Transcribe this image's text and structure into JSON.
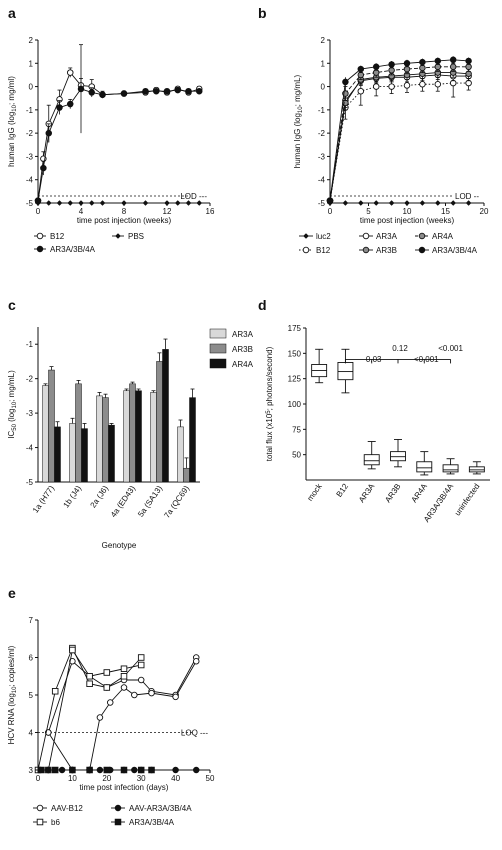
{
  "chart_data": [
    {
      "panel": "a",
      "type": "line",
      "xlabel": "time post injection (weeks)",
      "ylabel": "human IgG (log10; mg/ml)",
      "xlim": [
        0,
        16
      ],
      "ylim": [
        -5,
        2
      ],
      "xticks": [
        0,
        4,
        8,
        12,
        16
      ],
      "yticks": [
        -5,
        -4,
        -3,
        -2,
        -1,
        0,
        1,
        2
      ],
      "reference_line": {
        "label": "LOD",
        "y": -4.7
      },
      "series": [
        {
          "name": "B12",
          "marker": "open-circle",
          "x": [
            0,
            0.5,
            1,
            2,
            3,
            4,
            5,
            6,
            8,
            10,
            11,
            12,
            13,
            14,
            15
          ],
          "y": [
            -4.9,
            -3.1,
            -1.6,
            -0.55,
            0.6,
            0.05,
            0.0,
            -0.35,
            -0.3,
            -0.25,
            -0.15,
            -0.25,
            -0.1,
            -0.25,
            -0.1
          ],
          "err": [
            0,
            0.3,
            0.8,
            0.4,
            0.2,
            0.3,
            0.3,
            0.1,
            0.1,
            0.1,
            0.1,
            0.1,
            0.1,
            0.1,
            0.1
          ]
        },
        {
          "name": "PBS",
          "marker": "filled-diamond",
          "x": [
            0,
            1,
            2,
            3,
            4,
            5,
            6,
            8,
            10,
            12,
            13,
            14,
            15
          ],
          "y": [
            -5,
            -5,
            -5,
            -5,
            -5,
            -5,
            -5,
            -5,
            -5,
            -5,
            -5,
            -5,
            -5
          ],
          "err": [
            0,
            0,
            0,
            0,
            0,
            0,
            0,
            0,
            0,
            0,
            0,
            0,
            0
          ]
        },
        {
          "name": "AR3A/3B/4A",
          "marker": "filled-circle",
          "x": [
            0,
            0.5,
            1,
            2,
            3,
            4,
            5,
            6,
            8,
            10,
            11,
            12,
            13,
            14,
            15
          ],
          "y": [
            -4.9,
            -3.5,
            -2.0,
            -0.9,
            -0.75,
            -0.1,
            -0.25,
            -0.35,
            -0.3,
            -0.2,
            -0.2,
            -0.2,
            -0.15,
            -0.2,
            -0.2
          ],
          "err": [
            0,
            0.3,
            0.4,
            0.3,
            0.2,
            1.9,
            0.2,
            0.15,
            0.1,
            0.1,
            0.1,
            0.1,
            0.1,
            0.1,
            0.1
          ]
        }
      ]
    },
    {
      "panel": "b",
      "type": "line",
      "xlabel": "time post injection (weeks)",
      "ylabel": "human IgG (log10; mg/mL)",
      "xlim": [
        0,
        20
      ],
      "ylim": [
        -5,
        2
      ],
      "xticks": [
        0,
        5,
        10,
        15,
        20
      ],
      "yticks": [
        -5,
        -4,
        -3,
        -2,
        -1,
        0,
        1,
        2
      ],
      "reference_line": {
        "label": "LOD",
        "y": -4.7
      },
      "series": [
        {
          "name": "luc2",
          "marker": "filled-diamond",
          "style": "solid",
          "x": [
            0,
            2,
            4,
            6,
            8,
            10,
            12,
            14,
            16,
            18
          ],
          "y": [
            -5,
            -5,
            -5,
            -5,
            -5,
            -5,
            -5,
            -5,
            -5,
            -5
          ]
        },
        {
          "name": "B12",
          "marker": "open-circle",
          "style": "dotted",
          "x": [
            0,
            2,
            4,
            6,
            8,
            10,
            12,
            14,
            16,
            18
          ],
          "y": [
            -4.9,
            -0.9,
            -0.2,
            0.0,
            0.0,
            0.05,
            0.1,
            0.1,
            0.15,
            0.15
          ],
          "err": [
            0,
            0.5,
            0.6,
            0.4,
            0.3,
            0.3,
            0.3,
            0.3,
            0.6,
            0.3
          ]
        },
        {
          "name": "AR3A",
          "marker": "open-circle",
          "style": "solid",
          "x": [
            0,
            2,
            4,
            6,
            8,
            10,
            12,
            14,
            16,
            18
          ],
          "y": [
            -4.9,
            -0.6,
            0.25,
            0.35,
            0.4,
            0.4,
            0.45,
            0.5,
            0.45,
            0.45
          ],
          "err": [
            0,
            0.3,
            0.2,
            0.2,
            0.2,
            0.2,
            0.2,
            0.2,
            0.2,
            0.2
          ]
        },
        {
          "name": "AR3B",
          "marker": "grey-circle",
          "style": "solid",
          "x": [
            0,
            2,
            4,
            6,
            8,
            10,
            12,
            14,
            16,
            18
          ],
          "y": [
            -4.9,
            -0.7,
            0.3,
            0.4,
            0.45,
            0.5,
            0.55,
            0.6,
            0.6,
            0.55
          ],
          "err": [
            0,
            0.3,
            0.2,
            0.2,
            0.2,
            0.2,
            0.2,
            0.2,
            0.2,
            0.2
          ]
        },
        {
          "name": "AR4A",
          "marker": "grey-circle",
          "style": "dashed",
          "x": [
            0,
            2,
            4,
            6,
            8,
            10,
            12,
            14,
            16,
            18
          ],
          "y": [
            -4.9,
            -0.3,
            0.5,
            0.6,
            0.7,
            0.75,
            0.8,
            0.85,
            0.85,
            0.85
          ],
          "err": [
            0,
            0.3,
            0.2,
            0.2,
            0.2,
            0.2,
            0.2,
            0.2,
            0.2,
            0.2
          ]
        },
        {
          "name": "AR3A/3B/4A",
          "marker": "filled-circle",
          "style": "solid",
          "x": [
            0,
            2,
            4,
            6,
            8,
            10,
            12,
            14,
            16,
            18
          ],
          "y": [
            -4.9,
            0.2,
            0.75,
            0.85,
            0.95,
            1.0,
            1.05,
            1.1,
            1.15,
            1.1
          ],
          "err": [
            0,
            0.2,
            0.15,
            0.15,
            0.15,
            0.15,
            0.15,
            0.15,
            0.15,
            0.15
          ]
        }
      ]
    },
    {
      "panel": "c",
      "type": "bar",
      "xlabel": "Genotype",
      "ylabel": "IC50 (log10; mg/mL)",
      "ylim": [
        -5,
        -0.5
      ],
      "yticks": [
        -5,
        -4,
        -3,
        -2,
        -1
      ],
      "categories": [
        "1a (H77)",
        "1b (J4)",
        "2a (J6)",
        "4a (ED43)",
        "5a (SA13)",
        "7a (QC69)"
      ],
      "series": [
        {
          "name": "AR3A",
          "color": "#d9d9d9",
          "values": [
            -2.2,
            -3.3,
            -2.5,
            -2.35,
            -2.4,
            -3.4
          ],
          "err": [
            0.05,
            0.15,
            0.1,
            0.05,
            0.05,
            0.2
          ]
        },
        {
          "name": "AR3B",
          "color": "#8c8c8c",
          "values": [
            -1.75,
            -2.15,
            -2.55,
            -2.15,
            -1.5,
            -4.6
          ],
          "err": [
            0.1,
            0.1,
            0.1,
            0.05,
            0.25,
            0.3
          ]
        },
        {
          "name": "AR4A",
          "color": "#111111",
          "values": [
            -3.4,
            -3.45,
            -3.35,
            -2.35,
            -1.15,
            -2.55
          ],
          "err": [
            0.15,
            0.15,
            0.05,
            0.05,
            0.3,
            0.25
          ]
        }
      ]
    },
    {
      "panel": "d",
      "type": "box",
      "ylabel": "total flux (x10^5; photons/second)",
      "ylim": [
        25,
        175
      ],
      "yticks": [
        50,
        75,
        100,
        125,
        150,
        175
      ],
      "categories": [
        "mock",
        "B12",
        "AR3A",
        "AR3B",
        "AR4A",
        "AR3A/3B/4A",
        "uninfected"
      ],
      "boxes": [
        {
          "min": 121,
          "q1": 127,
          "median": 133,
          "q3": 139,
          "max": 154
        },
        {
          "min": 111,
          "q1": 124,
          "median": 132,
          "q3": 141,
          "max": 154
        },
        {
          "min": 36,
          "q1": 40,
          "median": 44,
          "q3": 50,
          "max": 63
        },
        {
          "min": 38,
          "q1": 44,
          "median": 48,
          "q3": 53,
          "max": 65
        },
        {
          "min": 30,
          "q1": 33,
          "median": 37,
          "q3": 43,
          "max": 53
        },
        {
          "min": 31,
          "q1": 33,
          "median": 35,
          "q3": 40,
          "max": 46
        },
        {
          "min": 31,
          "q1": 33,
          "median": 35,
          "q3": 38,
          "max": 43
        }
      ],
      "pvalues": [
        {
          "label": "0.03",
          "from": "B12",
          "to": "AR3A"
        },
        {
          "label": "0.12",
          "from": "B12",
          "to": "AR3B"
        },
        {
          "label": "<0.001",
          "from": "B12",
          "to": "AR4A"
        },
        {
          "label": "<0.001",
          "from": "B12",
          "to": "AR3A/3B/4A"
        }
      ]
    },
    {
      "panel": "e",
      "type": "line",
      "xlabel": "time post infection (days)",
      "ylabel": "HCV RNA (log10; copies/ml)",
      "xlim": [
        0,
        50
      ],
      "ylim": [
        3,
        7
      ],
      "xticks": [
        0,
        10,
        20,
        30,
        40,
        50
      ],
      "yticks": [
        3,
        4,
        5,
        6,
        7
      ],
      "reference_line": {
        "label": "LOQ",
        "y": 4
      },
      "series": [
        {
          "name": "AAV-B12",
          "marker": "open-circle",
          "lines": [
            {
              "x": [
                3,
                10,
                15,
                20,
                25,
                30,
                33,
                40,
                46
              ],
              "y": [
                4.0,
                5.9,
                5.5,
                5.2,
                5.4,
                5.4,
                5.1,
                5.0,
                6.0
              ]
            },
            {
              "x": [
                3,
                10,
                15,
                18,
                21,
                25,
                28,
                33,
                40,
                46
              ],
              "y": [
                4.0,
                3.0,
                3.0,
                4.4,
                4.8,
                5.2,
                5.0,
                5.05,
                4.95,
                5.9
              ]
            },
            {
              "x": [
                3,
                10,
                15
              ],
              "y": [
                3.0,
                3.0,
                3.0
              ]
            }
          ]
        },
        {
          "name": "b6",
          "marker": "open-square",
          "lines": [
            {
              "x": [
                0,
                5,
                10,
                15,
                20,
                25,
                30
              ],
              "y": [
                3.0,
                5.1,
                6.25,
                5.3,
                5.2,
                5.5,
                6.0
              ]
            },
            {
              "x": [
                3,
                10,
                15,
                20,
                25,
                30
              ],
              "y": [
                3.0,
                6.2,
                5.5,
                5.6,
                5.7,
                5.8
              ]
            }
          ]
        },
        {
          "name": "AAV-AR3A/3B/4A",
          "marker": "filled-circle",
          "lines": [
            {
              "x": [
                3,
                7,
                10,
                15,
                18,
                21,
                25,
                28,
                30,
                33,
                40,
                46
              ],
              "y": [
                3.0,
                3.0,
                3.0,
                3.0,
                3.0,
                3.0,
                3.0,
                3.0,
                3.0,
                3.0,
                3.0,
                3.0
              ]
            }
          ]
        },
        {
          "name": "AR3A/3B/4A",
          "marker": "filled-square",
          "lines": [
            {
              "x": [
                1,
                5,
                10,
                15,
                20,
                25,
                30,
                33
              ],
              "y": [
                3.0,
                3.0,
                3.0,
                3.0,
                3.0,
                3.0,
                3.0,
                3.0
              ]
            }
          ]
        }
      ]
    }
  ]
}
